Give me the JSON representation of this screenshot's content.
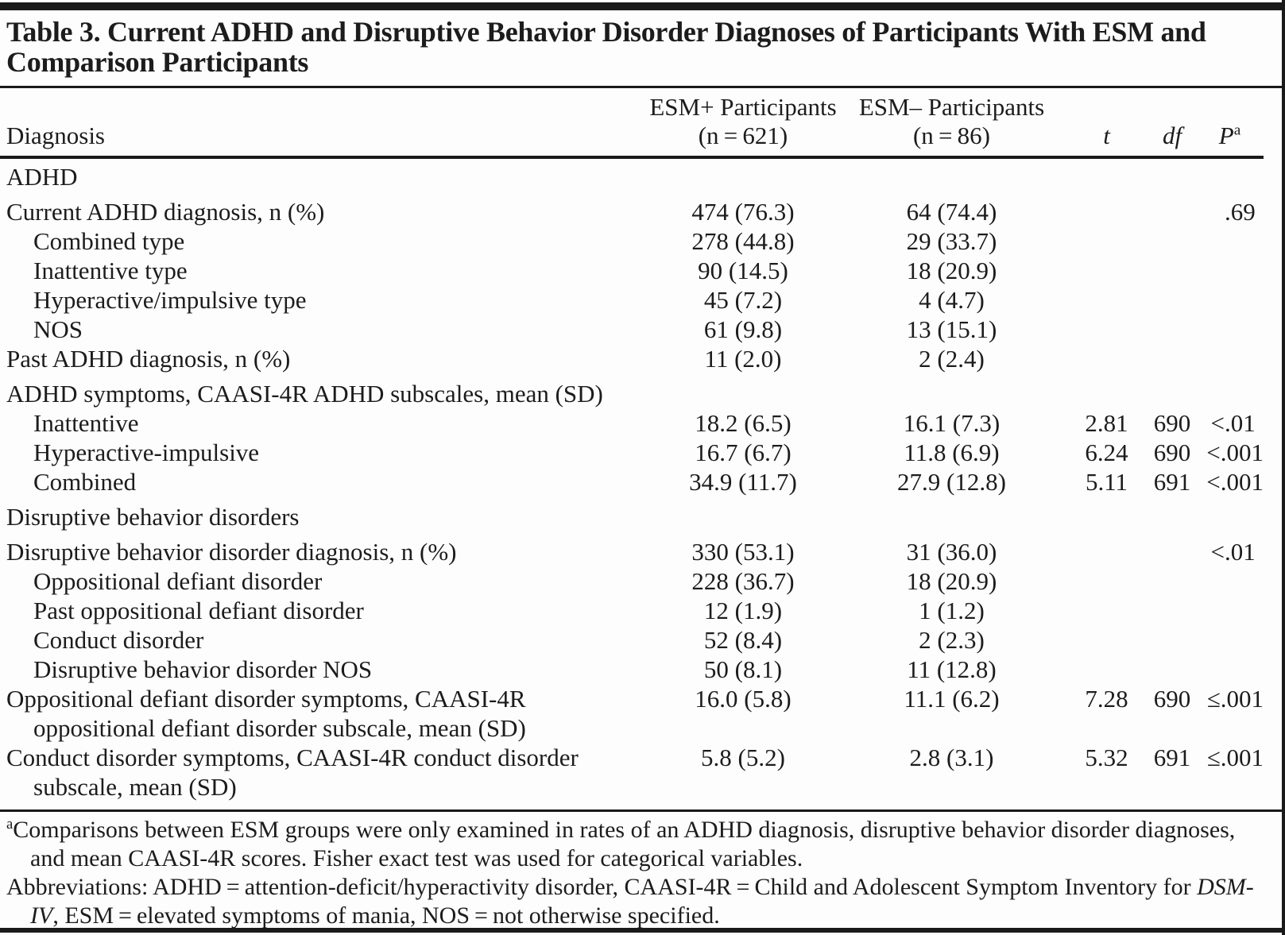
{
  "title": "Table 3. Current ADHD and Disruptive Behavior Disorder Diagnoses of Participants With ESM and Comparison Participants",
  "columns": {
    "diagnosis": "Diagnosis",
    "esm_plus": [
      "ESM+ Participants",
      "(n = 621)"
    ],
    "esm_minus": [
      "ESM– Participants",
      "(n = 86)"
    ],
    "t": "t",
    "df": "df",
    "p": "P",
    "p_sup": "a"
  },
  "table": {
    "rows": [
      {
        "section": true,
        "label": "ADHD"
      },
      {
        "label": "Current ADHD diagnosis, n (%)",
        "gap": true,
        "values": {
          "esm_plus": "474 (76.3)",
          "esm_minus": "64 (74.4)",
          "t": "",
          "df": "",
          "p": ".69"
        }
      },
      {
        "label": "Combined type",
        "indent": "sub",
        "values": {
          "esm_plus": "278 (44.8)",
          "esm_minus": "29 (33.7)",
          "t": "",
          "df": "",
          "p": ""
        }
      },
      {
        "label": "Inattentive type",
        "indent": "sub",
        "values": {
          "esm_plus": "90 (14.5)",
          "esm_minus": "18 (20.9)",
          "t": "",
          "df": "",
          "p": ""
        }
      },
      {
        "label": "Hyperactive/impulsive type",
        "indent": "sub",
        "values": {
          "esm_plus": "45 (7.2)",
          "esm_minus": "4 (4.7)",
          "t": "",
          "df": "",
          "p": ""
        }
      },
      {
        "label": "NOS",
        "indent": "sub",
        "values": {
          "esm_plus": "61 (9.8)",
          "esm_minus": "13 (15.1)",
          "t": "",
          "df": "",
          "p": ""
        }
      },
      {
        "label": "Past ADHD diagnosis, n (%)",
        "values": {
          "esm_plus": "11 (2.0)",
          "esm_minus": "2 (2.4)",
          "t": "",
          "df": "",
          "p": ""
        }
      },
      {
        "label": "ADHD symptoms, CAASI-4R ADHD subscales, mean (SD)",
        "gap": true,
        "values": {
          "esm_plus": "",
          "esm_minus": "",
          "t": "",
          "df": "",
          "p": ""
        }
      },
      {
        "label": "Inattentive",
        "indent": "sub",
        "values": {
          "esm_plus": "18.2 (6.5)",
          "esm_minus": "16.1 (7.3)",
          "t": "2.81",
          "df": "690",
          "p": "<.01"
        }
      },
      {
        "label": "Hyperactive-impulsive",
        "indent": "sub",
        "values": {
          "esm_plus": "16.7 (6.7)",
          "esm_minus": "11.8 (6.9)",
          "t": "6.24",
          "df": "690",
          "p": "<.001"
        }
      },
      {
        "label": "Combined",
        "indent": "sub",
        "values": {
          "esm_plus": "34.9 (11.7)",
          "esm_minus": "27.9 (12.8)",
          "t": "5.11",
          "df": "691",
          "p": "<.001"
        }
      },
      {
        "section": true,
        "gap": true,
        "label": "Disruptive behavior disorders"
      },
      {
        "label": "Disruptive behavior disorder diagnosis, n (%)",
        "gap": true,
        "values": {
          "esm_plus": "330 (53.1)",
          "esm_minus": "31 (36.0)",
          "t": "",
          "df": "",
          "p": "<.01"
        }
      },
      {
        "label": "Oppositional defiant disorder",
        "indent": "sub",
        "values": {
          "esm_plus": "228 (36.7)",
          "esm_minus": "18 (20.9)",
          "t": "",
          "df": "",
          "p": ""
        }
      },
      {
        "label": "Past oppositional defiant disorder",
        "indent": "sub",
        "values": {
          "esm_plus": "12 (1.9)",
          "esm_minus": "1 (1.2)",
          "t": "",
          "df": "",
          "p": ""
        }
      },
      {
        "label": "Conduct disorder",
        "indent": "sub",
        "values": {
          "esm_plus": "52 (8.4)",
          "esm_minus": "2 (2.3)",
          "t": "",
          "df": "",
          "p": ""
        }
      },
      {
        "label": "Disruptive behavior disorder NOS",
        "indent": "sub",
        "values": {
          "esm_plus": "50 (8.1)",
          "esm_minus": "11 (12.8)",
          "t": "",
          "df": "",
          "p": ""
        }
      },
      {
        "label": "Oppositional defiant disorder symptoms, CAASI-4R oppositional defiant disorder subscale, mean (SD)",
        "indent": "hang",
        "values": {
          "esm_plus": "16.0 (5.8)",
          "esm_minus": "11.1 (6.2)",
          "t": "7.28",
          "df": "690",
          "p": "≤.001"
        }
      },
      {
        "label": "Conduct disorder symptoms, CAASI-4R conduct disorder subscale, mean (SD)",
        "indent": "hang",
        "values": {
          "esm_plus": "5.8 (5.2)",
          "esm_minus": "2.8 (3.1)",
          "t": "5.32",
          "df": "691",
          "p": "≤.001"
        }
      }
    ]
  },
  "footnotes": {
    "a_sup": "a",
    "a_text": "Comparisons between ESM groups were only examined in rates of an ADHD diagnosis, disruptive behavior disorder diagnoses, and mean CAASI-4R scores. Fisher exact test was used for categorical variables.",
    "abbr_pre": "Abbreviations: ADHD = attention-deficit/hyperactivity disorder, CAASI-4R = Child and Adolescent Symptom Inventory for ",
    "abbr_italic": "DSM-IV",
    "abbr_post": ", ESM = elevated symptoms of mania, NOS = not otherwise specified."
  }
}
